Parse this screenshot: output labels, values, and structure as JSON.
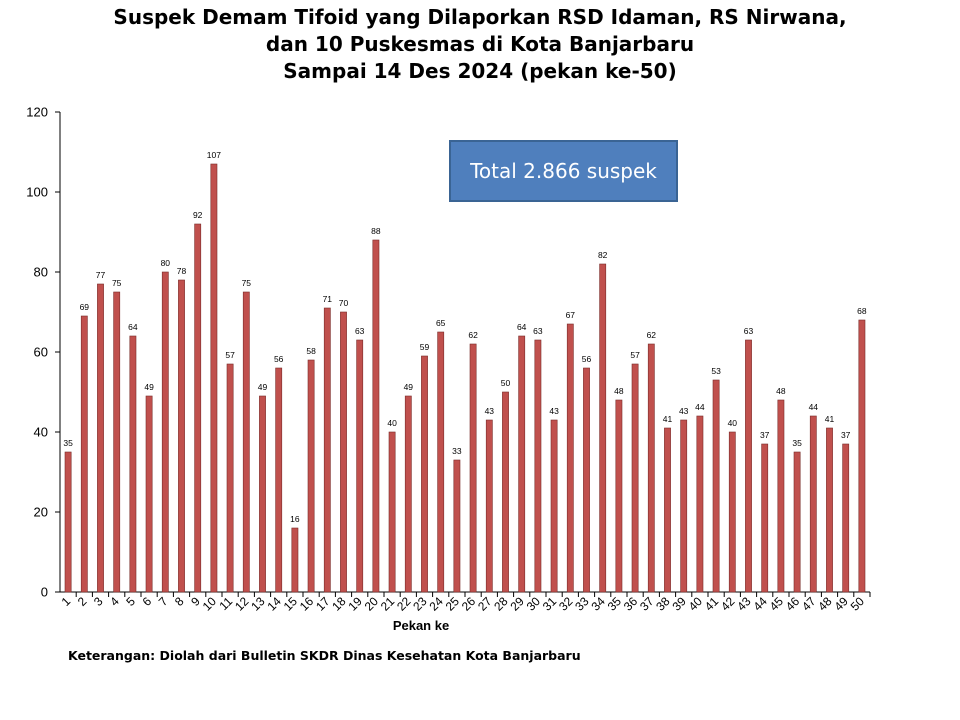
{
  "chart_data": {
    "type": "bar",
    "title_lines": [
      "Suspek Demam Tifoid yang Dilaporkan RSD Idaman, RS Nirwana,",
      "dan 10 Puskesmas di Kota Banjarbaru",
      "Sampai 14 Des 2024 (pekan ke-50)"
    ],
    "xlabel": "Pekan ke",
    "ylabel": "",
    "ylim": [
      0,
      120
    ],
    "yticks": [
      0,
      20,
      40,
      60,
      80,
      100,
      120
    ],
    "categories": [
      "1",
      "2",
      "3",
      "4",
      "5",
      "6",
      "7",
      "8",
      "9",
      "10",
      "11",
      "12",
      "13",
      "14",
      "15",
      "16",
      "17",
      "18",
      "19",
      "20",
      "21",
      "22",
      "23",
      "24",
      "25",
      "26",
      "27",
      "28",
      "29",
      "30",
      "31",
      "32",
      "33",
      "34",
      "35",
      "36",
      "37",
      "38",
      "39",
      "40",
      "41",
      "42",
      "43",
      "44",
      "45",
      "46",
      "47",
      "48",
      "49",
      "50"
    ],
    "values": [
      35,
      69,
      77,
      75,
      64,
      49,
      80,
      78,
      92,
      107,
      57,
      75,
      49,
      56,
      16,
      58,
      71,
      70,
      63,
      88,
      40,
      49,
      59,
      65,
      33,
      62,
      43,
      50,
      64,
      63,
      43,
      67,
      56,
      82,
      48,
      57,
      62,
      41,
      43,
      44,
      53,
      40,
      63,
      37,
      48,
      35,
      44,
      41,
      37,
      68
    ],
    "grid": false,
    "legend": "none",
    "bar_color": "#c0504d",
    "bar_edge_color": "#7a2c2a",
    "annotation": "Total 2.866 suspek"
  },
  "footnote": "Keterangan: Diolah dari Bulletin SKDR Dinas Kesehatan Kota Banjarbaru",
  "colors": {
    "annotation_bg": "#4f7fbd"
  }
}
